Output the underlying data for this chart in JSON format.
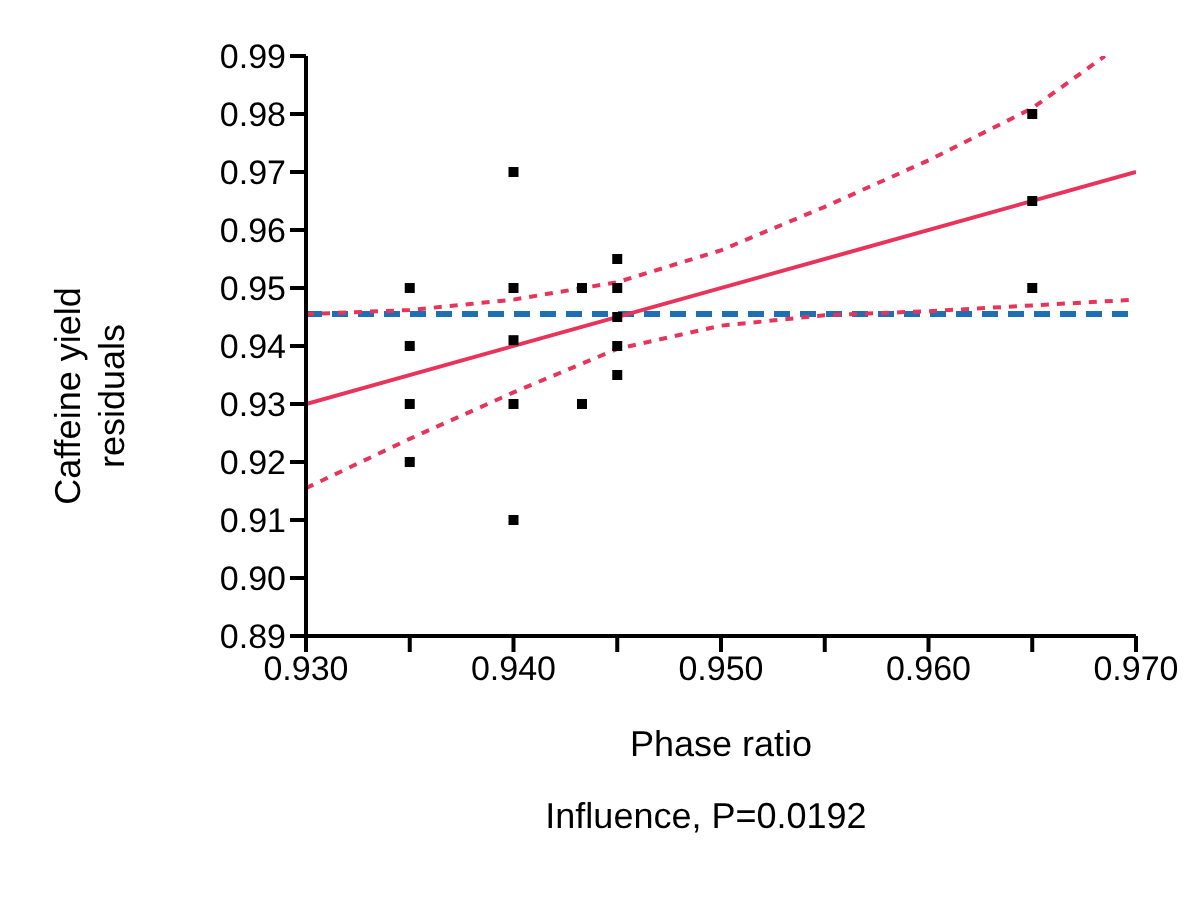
{
  "chart_data": {
    "type": "scatter",
    "xlabel": "Phase ratio",
    "ylabel": "Caffeine yield residuals",
    "annotations": [
      "Influence, P=0.0192"
    ],
    "xlim": [
      0.93,
      0.97
    ],
    "xticks": [
      {
        "value": 0.93,
        "label": "0.930"
      },
      {
        "value": 0.935,
        "label": null
      },
      {
        "value": 0.94,
        "label": "0.940"
      },
      {
        "value": 0.945,
        "label": null
      },
      {
        "value": 0.95,
        "label": "0.950"
      },
      {
        "value": 0.955,
        "label": null
      },
      {
        "value": 0.96,
        "label": "0.960"
      },
      {
        "value": 0.965,
        "label": null
      },
      {
        "value": 0.97,
        "label": "0.970"
      }
    ],
    "ylim": [
      0.89,
      0.99
    ],
    "yticks": [
      {
        "value": 0.89,
        "label": "0.89"
      },
      {
        "value": 0.9,
        "label": "0.90"
      },
      {
        "value": 0.91,
        "label": "0.91"
      },
      {
        "value": 0.92,
        "label": "0.92"
      },
      {
        "value": 0.93,
        "label": "0.93"
      },
      {
        "value": 0.94,
        "label": "0.94"
      },
      {
        "value": 0.95,
        "label": "0.95"
      },
      {
        "value": 0.96,
        "label": "0.96"
      },
      {
        "value": 0.97,
        "label": "0.97"
      },
      {
        "value": 0.98,
        "label": "0.98"
      },
      {
        "value": 0.99,
        "label": "0.99"
      }
    ],
    "grid": false,
    "legend": false,
    "marker": "square",
    "ref_lines": [
      {
        "axis": "y",
        "value": 0.9455,
        "color": "#1f6fb5",
        "line_style": "dashed"
      }
    ],
    "series": [
      {
        "color": "#000000",
        "x": [
          0.935,
          0.935,
          0.935,
          0.935,
          0.94,
          0.94,
          0.94,
          0.94,
          0.94,
          0.9433,
          0.9433,
          0.945,
          0.945,
          0.945,
          0.945,
          0.945,
          0.965,
          0.965,
          0.965
        ],
        "values": [
          0.95,
          0.94,
          0.93,
          0.92,
          0.97,
          0.95,
          0.941,
          0.93,
          0.91,
          0.95,
          0.93,
          0.955,
          0.95,
          0.945,
          0.94,
          0.935,
          0.98,
          0.965,
          0.95
        ]
      },
      {
        "type": "line",
        "color": "#e8335a",
        "line_style": "solid",
        "marker": "none",
        "x": [
          0.93,
          0.97
        ],
        "values": [
          0.93,
          0.97
        ]
      },
      {
        "type": "line",
        "color": "#e8335a",
        "line_style": "dotted",
        "marker": "none",
        "x": [
          0.93,
          0.935,
          0.94,
          0.945,
          0.95,
          0.955,
          0.96,
          0.965,
          0.9685
        ],
        "values": [
          0.9455,
          0.9462,
          0.948,
          0.951,
          0.9565,
          0.964,
          0.972,
          0.981,
          0.99
        ]
      },
      {
        "type": "line",
        "color": "#e8335a",
        "line_style": "dotted",
        "marker": "none",
        "x": [
          0.93,
          0.935,
          0.94,
          0.945,
          0.95,
          0.955,
          0.96,
          0.965,
          0.97
        ],
        "values": [
          0.9155,
          0.924,
          0.932,
          0.9395,
          0.9435,
          0.9453,
          0.946,
          0.947,
          0.948
        ]
      }
    ]
  }
}
